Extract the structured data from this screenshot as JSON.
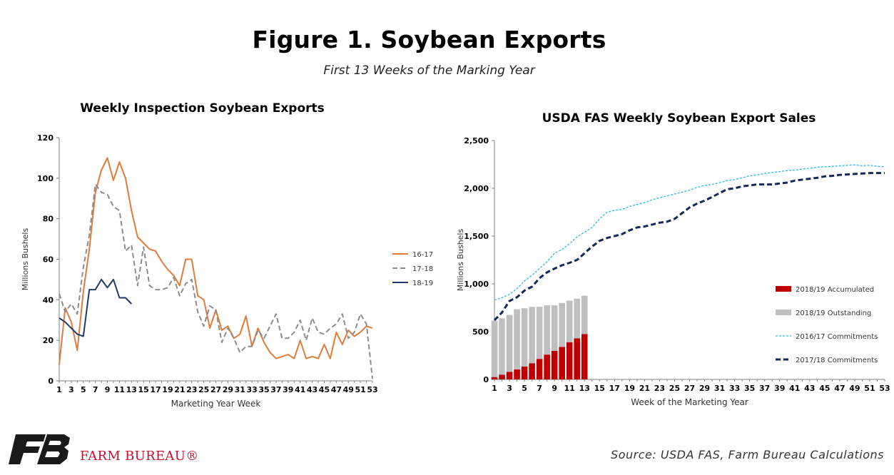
{
  "header": {
    "title": "Figure 1. Soybean Exports",
    "subtitle": "First 13 Weeks of the Marking Year"
  },
  "footer": {
    "brand": "FARM BUREAU®",
    "source": "Source: USDA FAS, Farm Bureau Calculations",
    "logo_icon": "farm-bureau-fb-logo-icon",
    "brand_color": "#c8102e"
  },
  "chart_data": [
    {
      "type": "line",
      "title": "Weekly Inspection Soybean Exports",
      "xlabel": "Marketing Year Week",
      "ylabel": "Millions Bushels",
      "xlim": [
        1,
        53
      ],
      "ylim": [
        0,
        120
      ],
      "yticks": [
        0,
        20,
        40,
        60,
        80,
        100,
        120
      ],
      "xticks": [
        1,
        3,
        5,
        7,
        9,
        11,
        13,
        15,
        17,
        19,
        21,
        23,
        25,
        27,
        29,
        31,
        33,
        35,
        37,
        39,
        41,
        43,
        45,
        47,
        49,
        51,
        53
      ],
      "grid": false,
      "legend_position": "right",
      "series": [
        {
          "name": "16-17",
          "color": "#e07b39",
          "style": "solid",
          "values": [
            8,
            36,
            29,
            15,
            44,
            65,
            93,
            104,
            110,
            99,
            108,
            100,
            84,
            71,
            68,
            65,
            64,
            59,
            55,
            52,
            47,
            60,
            60,
            42,
            40,
            26,
            35,
            25,
            27,
            21,
            23,
            32,
            17,
            26,
            19,
            14,
            11,
            12,
            13,
            11,
            20,
            11,
            12,
            11,
            18,
            11,
            24,
            18,
            25,
            22,
            24,
            27,
            26
          ]
        },
        {
          "name": "17-18",
          "color": "#8c8c8c",
          "style": "dashed",
          "values": [
            43,
            34,
            38,
            33,
            56,
            72,
            97,
            93,
            92,
            86,
            84,
            64,
            67,
            47,
            66,
            47,
            45,
            45,
            46,
            51,
            42,
            48,
            50,
            34,
            27,
            37,
            35,
            19,
            26,
            21,
            14,
            17,
            17,
            25,
            21,
            27,
            33,
            21,
            21,
            24,
            30,
            20,
            31,
            24,
            23,
            26,
            28,
            33,
            21,
            24,
            33,
            28,
            1
          ]
        },
        {
          "name": "18-19",
          "color": "#1f3a68",
          "style": "solid",
          "values": [
            31,
            29,
            26,
            23,
            22,
            45,
            45,
            50,
            46,
            50,
            41,
            41,
            38
          ]
        }
      ]
    },
    {
      "type": "bar+line",
      "title": "USDA FAS Weekly Soybean Export Sales",
      "xlabel": "Week of the Marketing Year",
      "ylabel": "Millions Bushels",
      "xlim": [
        1,
        53
      ],
      "ylim": [
        0,
        2500
      ],
      "yticks": [
        0,
        500,
        1000,
        1500,
        2000,
        2500
      ],
      "ytick_labels": [
        "0",
        "500",
        "1,000",
        "1,500",
        "2,000",
        "2,500"
      ],
      "xticks": [
        1,
        3,
        5,
        7,
        9,
        11,
        13,
        15,
        17,
        19,
        21,
        23,
        25,
        27,
        29,
        31,
        33,
        35,
        37,
        39,
        41,
        43,
        45,
        47,
        49,
        51,
        53
      ],
      "grid": false,
      "legend_position": "right",
      "stacked_bars": [
        {
          "name": "2018/19 Accumulated",
          "color": "#c00000",
          "values": [
            25,
            50,
            80,
            105,
            135,
            170,
            215,
            260,
            300,
            340,
            390,
            430,
            475
          ]
        },
        {
          "name": "2018/19 Outstanding",
          "color": "#bfbfbf",
          "values": [
            590,
            590,
            595,
            630,
            610,
            590,
            545,
            515,
            475,
            460,
            435,
            415,
            400
          ]
        }
      ],
      "lines": [
        {
          "name": "2016/17 Commitments",
          "color": "#29b6e8",
          "style": "dotted",
          "values": [
            830,
            855,
            890,
            950,
            1030,
            1090,
            1160,
            1230,
            1320,
            1360,
            1420,
            1490,
            1540,
            1590,
            1680,
            1750,
            1770,
            1780,
            1810,
            1830,
            1850,
            1880,
            1900,
            1920,
            1940,
            1960,
            1980,
            2010,
            2030,
            2040,
            2060,
            2080,
            2090,
            2110,
            2130,
            2140,
            2155,
            2165,
            2175,
            2185,
            2190,
            2200,
            2210,
            2220,
            2225,
            2230,
            2235,
            2240,
            2245,
            2235,
            2240,
            2230,
            2225
          ]
        },
        {
          "name": "2017/18 Commitments",
          "color": "#14285a",
          "style": "dashed",
          "values": [
            620,
            700,
            820,
            860,
            930,
            970,
            1060,
            1120,
            1160,
            1195,
            1220,
            1250,
            1320,
            1390,
            1450,
            1480,
            1500,
            1520,
            1560,
            1590,
            1600,
            1620,
            1640,
            1650,
            1680,
            1740,
            1800,
            1840,
            1870,
            1910,
            1950,
            1990,
            2000,
            2020,
            2030,
            2040,
            2040,
            2040,
            2050,
            2060,
            2080,
            2090,
            2100,
            2110,
            2125,
            2130,
            2140,
            2145,
            2150,
            2155,
            2160,
            2160,
            2160
          ]
        }
      ]
    }
  ]
}
